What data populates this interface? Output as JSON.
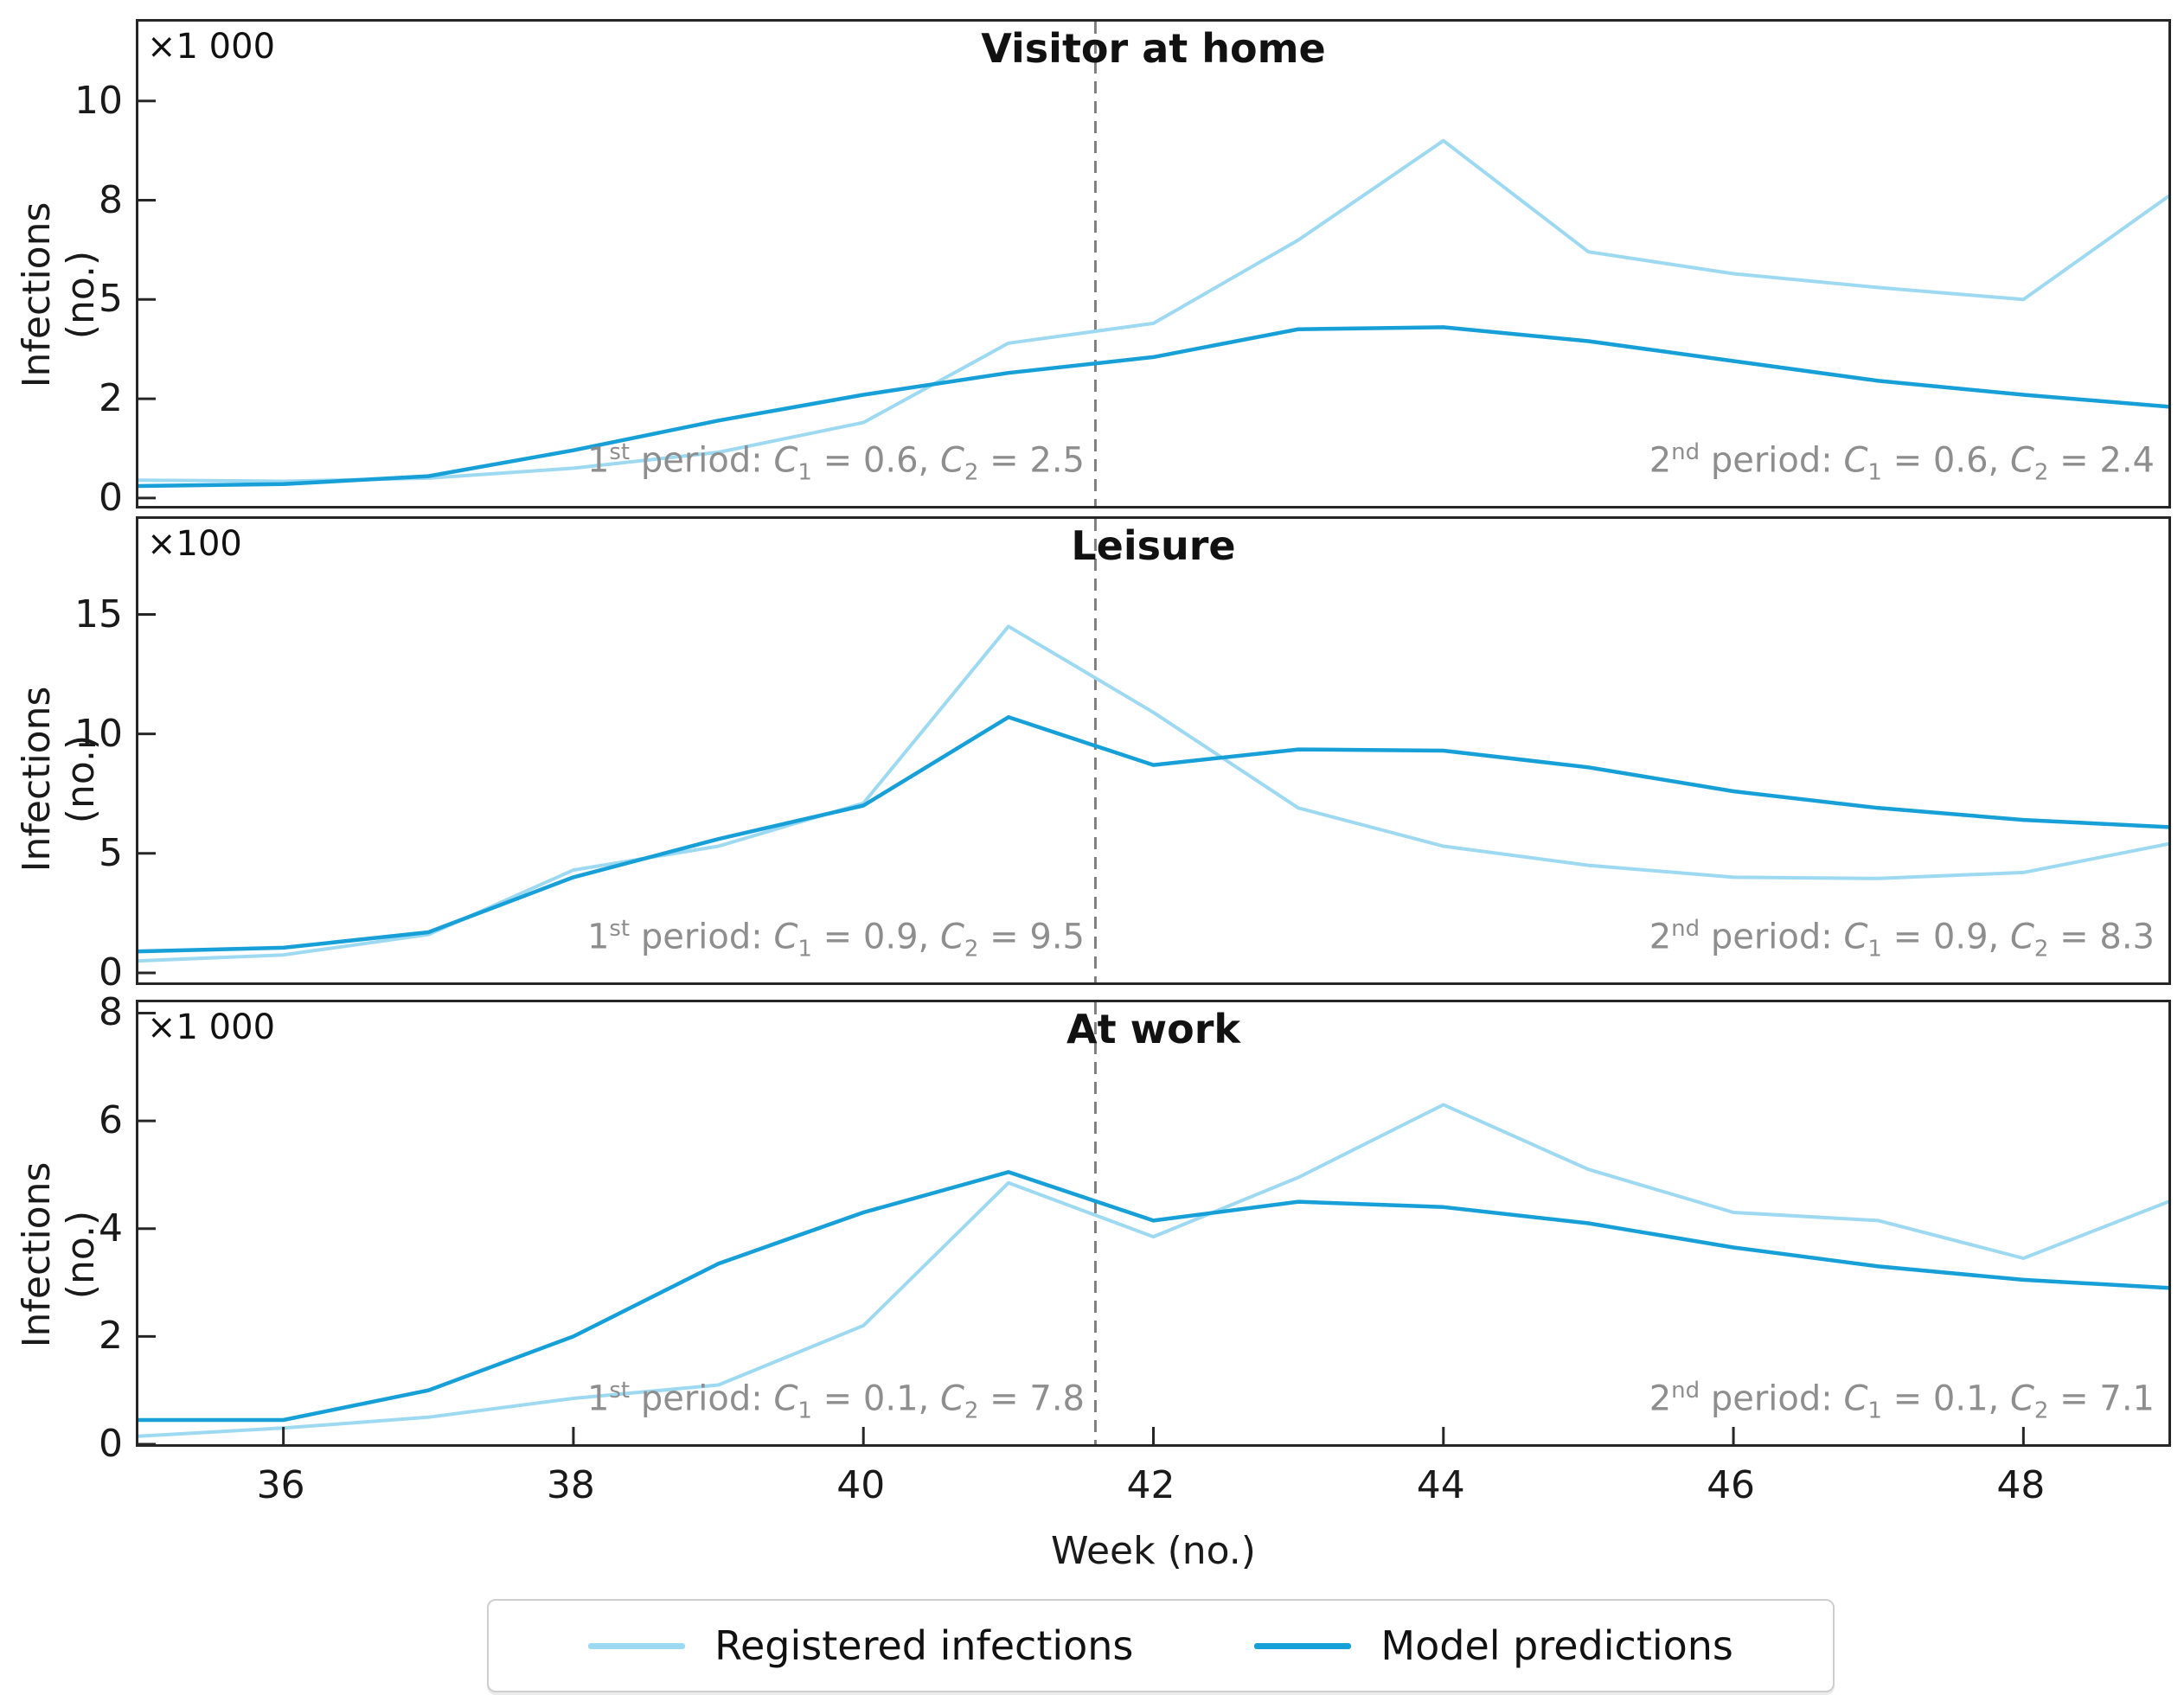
{
  "figure": {
    "background": "#ffffff",
    "frame_color": "#262626",
    "tick_text_color": "#1a1a1a",
    "annotation_color": "#8e8e8e",
    "dashed_line_color": "#7f7f7f"
  },
  "xlabel": "Week (no.)",
  "ylabel": "Infections (no.)",
  "x_axis": {
    "lim": [
      35,
      49
    ],
    "ticks": [
      36,
      38,
      40,
      42,
      44,
      46,
      48
    ]
  },
  "dashed_week": 41.6,
  "legend": {
    "items": [
      {
        "label": "Registered infections",
        "color": "#9ed9f2"
      },
      {
        "label": "Model predictions",
        "color": "#179fd8"
      }
    ]
  },
  "chart_data": [
    {
      "type": "line",
      "title": "Visitor at home",
      "scale_label": "×1 000",
      "ylabel": "Infections (no.)",
      "xlabel": "Week (no.)",
      "ylim": [
        -0.2,
        12
      ],
      "y_ticks": [
        {
          "value": 0,
          "label": "0"
        },
        {
          "value": 2.5,
          "label": "2"
        },
        {
          "value": 5,
          "label": "5"
        },
        {
          "value": 7.5,
          "label": "8"
        },
        {
          "value": 10,
          "label": "10"
        }
      ],
      "x": [
        35,
        36,
        37,
        38,
        39,
        40,
        41,
        42,
        43,
        44,
        45,
        46,
        47,
        48,
        49
      ],
      "series": [
        {
          "name": "Registered infections",
          "color": "#9ed9f2",
          "values": [
            0.45,
            0.42,
            0.5,
            0.75,
            1.15,
            1.9,
            3.9,
            4.4,
            6.5,
            9.0,
            6.2,
            5.65,
            5.3,
            5.0,
            7.6
          ]
        },
        {
          "name": "Model predictions",
          "color": "#179fd8",
          "values": [
            0.3,
            0.35,
            0.55,
            1.2,
            1.95,
            2.6,
            3.15,
            3.55,
            4.25,
            4.3,
            3.95,
            3.45,
            2.95,
            2.6,
            2.3
          ]
        }
      ],
      "annotations": [
        "1^{st} period: C_{1} = 0.6, C_{2} = 2.5",
        "2^{nd} period: C_{1} = 0.6, C_{2} = 2.4"
      ]
    },
    {
      "type": "line",
      "title": "Leisure",
      "scale_label": "×100",
      "ylabel": "Infections (no.)",
      "xlabel": "Week (no.)",
      "ylim": [
        -0.4,
        19
      ],
      "y_ticks": [
        {
          "value": 0,
          "label": "0"
        },
        {
          "value": 5,
          "label": "5"
        },
        {
          "value": 10,
          "label": "10"
        },
        {
          "value": 15,
          "label": "15"
        }
      ],
      "x": [
        35,
        36,
        37,
        38,
        39,
        40,
        41,
        42,
        43,
        44,
        45,
        46,
        47,
        48,
        49
      ],
      "series": [
        {
          "name": "Registered infections",
          "color": "#9ed9f2",
          "values": [
            0.5,
            0.75,
            1.6,
            4.3,
            5.3,
            7.1,
            14.5,
            10.9,
            6.9,
            5.3,
            4.5,
            4.0,
            3.95,
            4.2,
            5.4
          ]
        },
        {
          "name": "Model predictions",
          "color": "#179fd8",
          "values": [
            0.9,
            1.05,
            1.7,
            4.0,
            5.6,
            7.0,
            10.7,
            8.7,
            9.35,
            9.3,
            8.6,
            7.6,
            6.9,
            6.4,
            6.1
          ]
        }
      ],
      "annotations": [
        "1^{st} period: C_{1} = 0.9, C_{2} = 9.5",
        "2^{nd} period: C_{1} = 0.9, C_{2} = 8.3"
      ]
    },
    {
      "type": "line",
      "title": "At work",
      "scale_label": "×1 000",
      "ylabel": "Infections (no.)",
      "xlabel": "Week (no.)",
      "ylim": [
        0,
        8.2
      ],
      "y_ticks": [
        {
          "value": 0,
          "label": "0"
        },
        {
          "value": 2,
          "label": "2"
        },
        {
          "value": 4,
          "label": "4"
        },
        {
          "value": 6,
          "label": "6"
        },
        {
          "value": 8,
          "label": "8"
        }
      ],
      "x": [
        35,
        36,
        37,
        38,
        39,
        40,
        41,
        42,
        43,
        44,
        45,
        46,
        47,
        48,
        49
      ],
      "series": [
        {
          "name": "Registered infections",
          "color": "#9ed9f2",
          "values": [
            0.15,
            0.3,
            0.5,
            0.85,
            1.1,
            2.2,
            4.85,
            3.85,
            4.95,
            6.3,
            5.1,
            4.3,
            4.15,
            3.45,
            4.5
          ]
        },
        {
          "name": "Model predictions",
          "color": "#179fd8",
          "values": [
            0.45,
            0.45,
            1.0,
            2.0,
            3.35,
            4.3,
            5.05,
            4.15,
            4.5,
            4.4,
            4.1,
            3.65,
            3.3,
            3.05,
            2.9
          ]
        }
      ],
      "annotations": [
        "1^{st} period: C_{1} = 0.1, C_{2} = 7.8",
        "2^{nd} period: C_{1} = 0.1, C_{2} = 7.1"
      ]
    }
  ]
}
